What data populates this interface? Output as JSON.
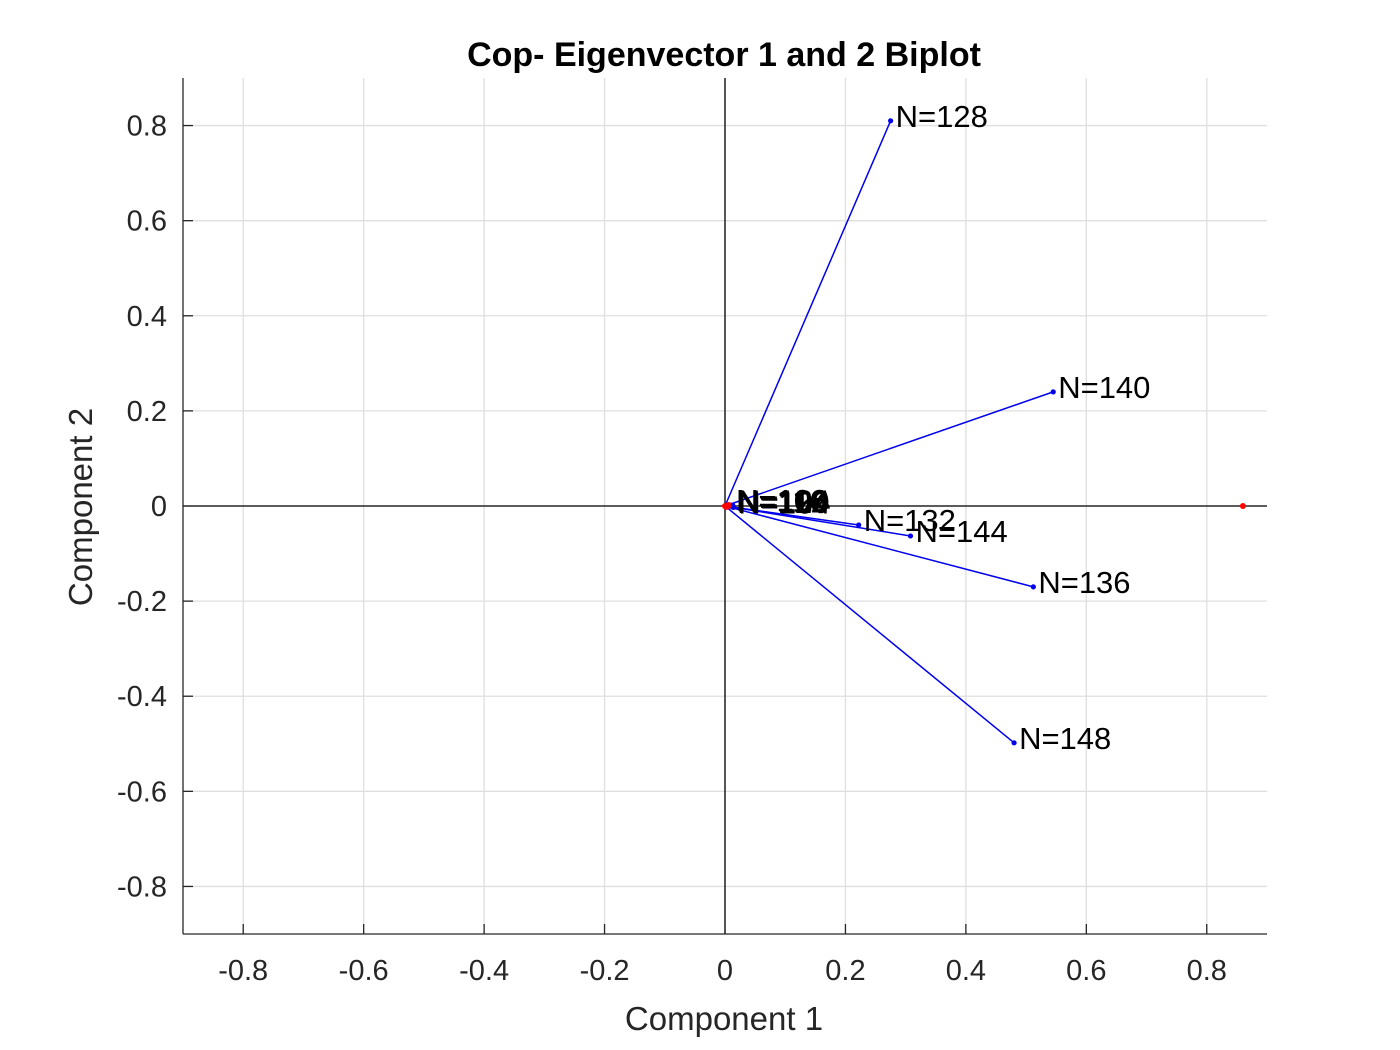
{
  "chart_data": {
    "type": "scatter",
    "title": "Cop- Eigenvector 1 and 2 Biplot",
    "xlabel": "Component 1",
    "ylabel": "Component 2",
    "xlim": [
      -0.9,
      0.9
    ],
    "ylim": [
      -0.9,
      0.9
    ],
    "xticks": [
      -0.8,
      -0.6,
      -0.4,
      -0.2,
      0,
      0.2,
      0.4,
      0.6,
      0.8
    ],
    "yticks": [
      -0.8,
      -0.6,
      -0.4,
      -0.2,
      0,
      0.2,
      0.4,
      0.6,
      0.8
    ],
    "xtick_labels": [
      "-0.8",
      "-0.6",
      "-0.4",
      "-0.2",
      "0",
      "0.2",
      "0.4",
      "0.6",
      "0.8"
    ],
    "ytick_labels": [
      "-0.8",
      "-0.6",
      "-0.4",
      "-0.2",
      "0",
      "0.2",
      "0.4",
      "0.6",
      "0.8"
    ],
    "grid": true,
    "zero_lines": true,
    "vector_color": "#0000ee",
    "observation_color": "#ff0000",
    "vectors": [
      {
        "label": "N=128",
        "x": 0.275,
        "y": 0.81
      },
      {
        "label": "N=140",
        "x": 0.545,
        "y": 0.24
      },
      {
        "label": "N=132",
        "x": 0.222,
        "y": -0.04
      },
      {
        "label": "N=144",
        "x": 0.308,
        "y": -0.063
      },
      {
        "label": "N=136",
        "x": 0.512,
        "y": -0.17
      },
      {
        "label": "N=148",
        "x": 0.48,
        "y": -0.498
      },
      {
        "label": "N=100",
        "x": 0.012,
        "y": 0.0
      },
      {
        "label": "N=104",
        "x": 0.014,
        "y": -0.003
      },
      {
        "label": "N=108",
        "x": 0.01,
        "y": 0.002
      },
      {
        "label": "N=112",
        "x": 0.013,
        "y": -0.001
      },
      {
        "label": "N=116",
        "x": 0.011,
        "y": 0.001
      },
      {
        "label": "N=120",
        "x": 0.012,
        "y": -0.002
      },
      {
        "label": "N=124",
        "x": 0.013,
        "y": 0.001
      }
    ],
    "observations": [
      {
        "x": 0.86,
        "y": 0.0
      },
      {
        "x": 0.0,
        "y": 0.0
      },
      {
        "x": 0.003,
        "y": 0.001
      },
      {
        "x": 0.005,
        "y": -0.001
      },
      {
        "x": 0.002,
        "y": -0.002
      },
      {
        "x": 0.006,
        "y": 0.002
      }
    ]
  }
}
